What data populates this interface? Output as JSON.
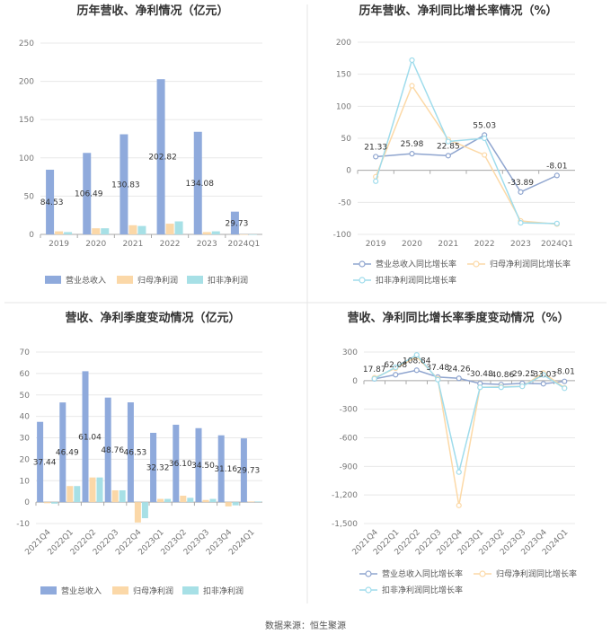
{
  "footer": "数据来源：恒生聚源",
  "colors": {
    "revenue": "#8faadc",
    "net_profit": "#fbd8a8",
    "deducted": "#a7e0e6",
    "rev_line": "#8fa5cf",
    "np_line": "#fcd9a7",
    "ded_line": "#9fdcec"
  },
  "chart_data": [
    {
      "type": "bar",
      "title": "历年营收、净利情况（亿元）",
      "categories": [
        "2019",
        "2020",
        "2021",
        "2022",
        "2023",
        "2024Q1"
      ],
      "ylim": [
        0,
        250
      ],
      "yticks": [
        0,
        50,
        100,
        150,
        200,
        250
      ],
      "series": [
        {
          "name": "营业总收入",
          "values": [
            84.53,
            106.49,
            130.83,
            202.82,
            134.08,
            29.73
          ]
        },
        {
          "name": "归母净利润",
          "values": [
            4,
            8,
            12,
            14,
            3,
            0
          ]
        },
        {
          "name": "扣非净利润",
          "values": [
            3,
            8,
            11,
            17,
            4,
            0
          ]
        }
      ],
      "data_labels": [
        "84.53",
        "106.49",
        "130.83",
        "202.82",
        "134.08",
        "29.73"
      ],
      "legend": "bottom"
    },
    {
      "type": "line",
      "title": "历年营收、净利同比增长率情况（%）",
      "categories": [
        "2019",
        "2020",
        "2021",
        "2022",
        "2023",
        "2024Q1"
      ],
      "ylim": [
        -100,
        200
      ],
      "yticks": [
        -100,
        -50,
        0,
        50,
        100,
        150,
        200
      ],
      "series": [
        {
          "name": "营业总收入同比增长率",
          "values": [
            21.33,
            25.98,
            22.85,
            55.03,
            -33.89,
            -8.01
          ]
        },
        {
          "name": "归母净利润同比增长率",
          "values": [
            -10,
            132,
            48,
            24,
            -79,
            -84
          ]
        },
        {
          "name": "扣非净利润同比增长率",
          "values": [
            -17,
            172,
            45,
            50,
            -82,
            -83
          ]
        }
      ],
      "data_labels": [
        "21.33",
        "25.98",
        "22.85",
        "55.03",
        "-33.89",
        "-8.01"
      ],
      "legend": "bottom"
    },
    {
      "type": "bar",
      "title": "营收、净利季度变动情况（亿元）",
      "categories": [
        "2021Q4",
        "2022Q1",
        "2022Q2",
        "2022Q3",
        "2022Q4",
        "2023Q1",
        "2023Q2",
        "2023Q3",
        "2023Q4",
        "2024Q1"
      ],
      "ylim": [
        -10,
        70
      ],
      "yticks": [
        -10,
        0,
        10,
        20,
        30,
        40,
        50,
        60,
        70
      ],
      "series": [
        {
          "name": "营业总收入",
          "values": [
            37.44,
            46.49,
            61.04,
            48.76,
            46.53,
            32.32,
            36.1,
            34.5,
            31.16,
            29.73
          ]
        },
        {
          "name": "归母净利润",
          "values": [
            -0.5,
            7.5,
            11.5,
            5.5,
            -9.5,
            1.5,
            3,
            1,
            -2,
            0.3
          ]
        },
        {
          "name": "扣非净利润",
          "values": [
            -0.7,
            7.5,
            11.5,
            5.5,
            -7.5,
            1.5,
            2,
            1.5,
            -1.5,
            0.3
          ]
        }
      ],
      "data_labels": [
        "37.44",
        "46.49",
        "61.04",
        "48.76",
        "46.53",
        "32.32",
        "36.10",
        "34.50",
        "31.16",
        "29.73"
      ],
      "legend": "bottom"
    },
    {
      "type": "line",
      "title": "营收、净利同比增长率季度变动情况（%）",
      "categories": [
        "2021Q4",
        "2022Q1",
        "2022Q2",
        "2022Q3",
        "2022Q4",
        "2023Q1",
        "2023Q2",
        "2023Q3",
        "2023Q4",
        "2024Q1"
      ],
      "ylim": [
        -1500,
        300
      ],
      "yticks": [
        -1500,
        -1200,
        -900,
        -600,
        -300,
        0,
        300
      ],
      "series": [
        {
          "name": "营业总收入同比增长率",
          "values": [
            17.87,
            62.08,
            108.84,
            37.48,
            24.26,
            -30.48,
            -40.86,
            -29.25,
            -33.03,
            -8.01
          ]
        },
        {
          "name": "归母净利润同比增长率",
          "values": [
            30,
            130,
            250,
            20,
            -1310,
            -70,
            -65,
            -60,
            80,
            -75
          ]
        },
        {
          "name": "扣非净利润同比增长率",
          "values": [
            20,
            140,
            270,
            10,
            -960,
            -70,
            -70,
            -60,
            60,
            -80
          ]
        }
      ],
      "data_labels": [
        "17.87",
        "62.08",
        "108.84",
        "37.48",
        "24.26",
        "-30.48",
        "-40.86",
        "-29.25",
        "-33.03",
        "-8.01"
      ],
      "legend": "bottom"
    }
  ]
}
